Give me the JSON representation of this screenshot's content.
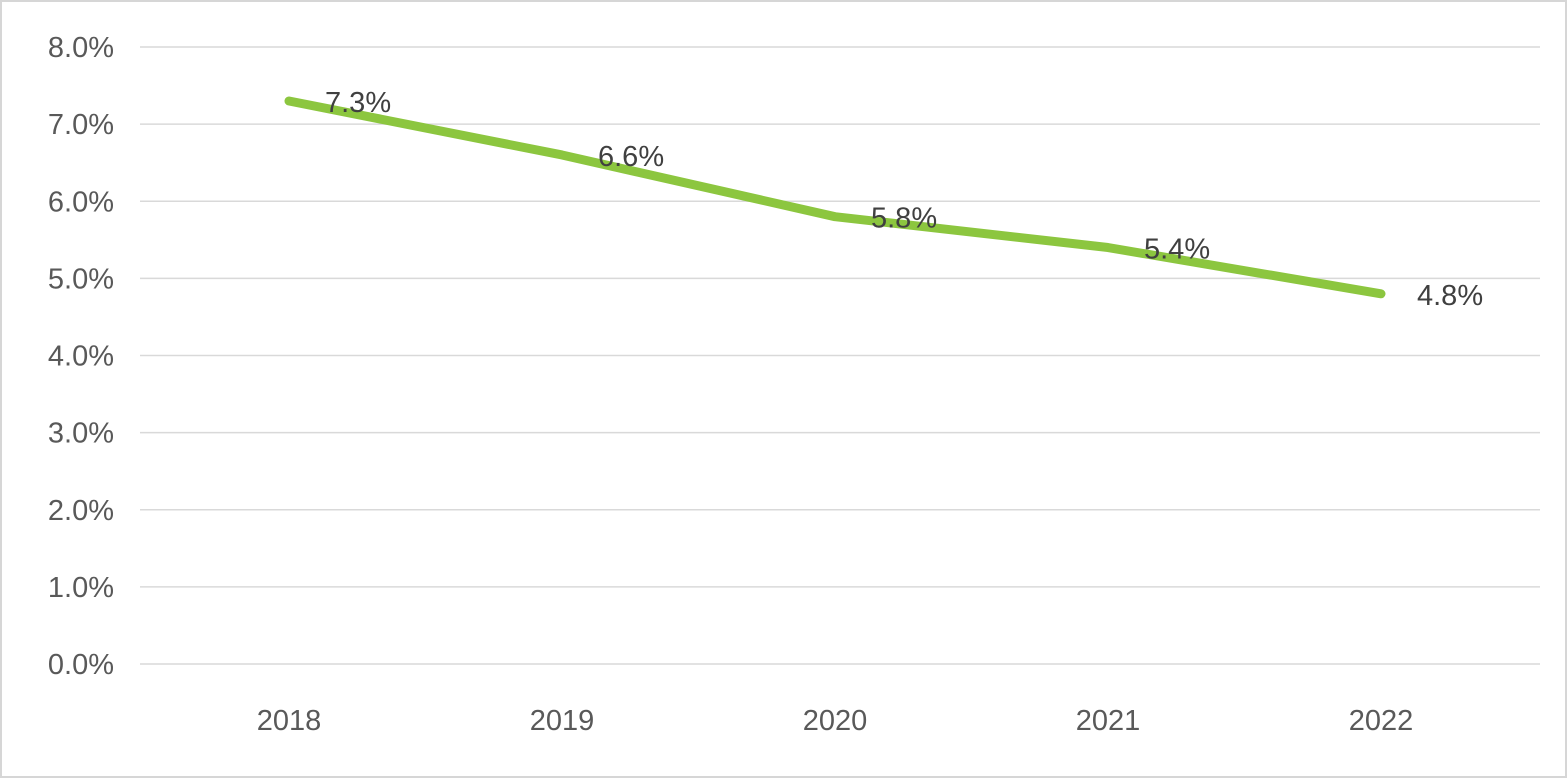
{
  "chart_data": {
    "type": "line",
    "title": "",
    "xlabel": "",
    "ylabel": "",
    "categories": [
      "2018",
      "2019",
      "2020",
      "2021",
      "2022"
    ],
    "series": [
      {
        "name": "series-1",
        "values": [
          7.3,
          6.6,
          5.8,
          5.4,
          4.8
        ],
        "data_labels": [
          "7.3%",
          "6.6%",
          "5.8%",
          "5.4%",
          "4.8%"
        ],
        "line_color": "#8cc63f"
      }
    ],
    "ylim": [
      0,
      8
    ],
    "y_tick_step": 1,
    "y_tick_labels": [
      "0.0%",
      "1.0%",
      "2.0%",
      "3.0%",
      "4.0%",
      "5.0%",
      "6.0%",
      "7.0%",
      "8.0%"
    ],
    "grid": true,
    "legend": "none",
    "colors": {
      "axis_label": "#595959",
      "data_label": "#404040",
      "gridline": "#d9d9d9",
      "background": "#ffffff",
      "frame_border": "#d6d6d6"
    }
  }
}
